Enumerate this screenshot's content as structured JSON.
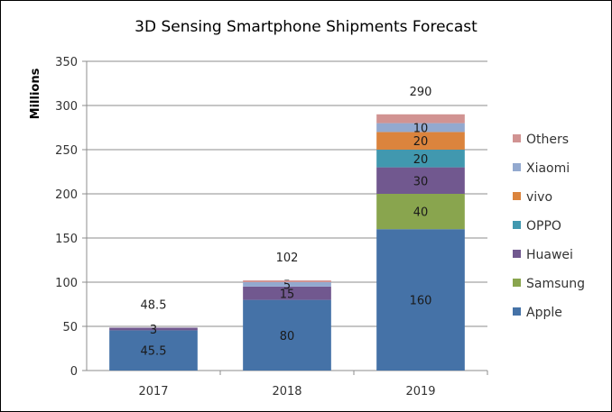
{
  "chart_data": {
    "type": "bar",
    "stacked": true,
    "title": "3D Sensing Smartphone Shipments Forecast",
    "ylabel": "Millions",
    "xlabel": "",
    "ylim": [
      0,
      350
    ],
    "yticks": [
      "0",
      "50",
      "100",
      "150",
      "200",
      "250",
      "300",
      "350"
    ],
    "ytick_values": [
      0,
      50,
      100,
      150,
      200,
      250,
      300,
      350
    ],
    "grid": true,
    "legend_position": "right",
    "categories": [
      "2017",
      "2018",
      "2019"
    ],
    "totals": [
      48.5,
      102,
      290
    ],
    "total_labels": [
      "48.5",
      "102",
      "290"
    ],
    "series": [
      {
        "name": "Apple",
        "color": "#4572a7",
        "values": [
          45.5,
          80,
          160
        ],
        "labels": [
          "45.5",
          "80",
          "160"
        ]
      },
      {
        "name": "Samsung",
        "color": "#89a54e",
        "values": [
          0,
          0,
          40
        ],
        "labels": [
          "",
          "",
          "40"
        ]
      },
      {
        "name": "Huawei",
        "color": "#71588f",
        "values": [
          3,
          15,
          30
        ],
        "labels": [
          "3",
          "15",
          "30"
        ]
      },
      {
        "name": "OPPO",
        "color": "#4198af",
        "values": [
          0,
          0,
          20
        ],
        "labels": [
          "",
          "",
          "20"
        ]
      },
      {
        "name": "vivo",
        "color": "#db843d",
        "values": [
          0,
          0,
          20
        ],
        "labels": [
          "",
          "",
          "20"
        ]
      },
      {
        "name": "Xiaomi",
        "color": "#93a9cf",
        "values": [
          0,
          5,
          10
        ],
        "labels": [
          "",
          "5",
          "10"
        ]
      },
      {
        "name": "Others",
        "color": "#d19392",
        "values": [
          0,
          2,
          10
        ],
        "labels": [
          "",
          "",
          ""
        ]
      }
    ]
  }
}
